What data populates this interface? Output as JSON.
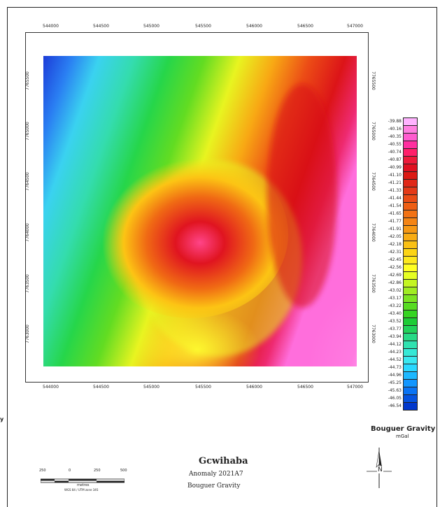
{
  "map": {
    "easting_ticks": [
      "544000",
      "544500",
      "545000",
      "545500",
      "546000",
      "546500",
      "547000"
    ],
    "northing_ticks_left": [
      "7765500",
      "7765000",
      "7764500",
      "7764000",
      "7763500",
      "7763000"
    ],
    "northing_ticks_right": [
      "7765500",
      "7765000",
      "7764500",
      "7764000",
      "7763500",
      "7763000"
    ]
  },
  "legend": {
    "title": "Bouguer Gravity",
    "unit": "mGal",
    "values": [
      "-39.88",
      "-40.16",
      "-40.35",
      "-40.55",
      "-40.74",
      "-40.87",
      "-40.99",
      "-41.10",
      "-41.21",
      "-41.33",
      "-41.44",
      "-41.54",
      "-41.65",
      "-41.77",
      "-41.91",
      "-42.05",
      "-42.18",
      "-42.31",
      "-42.45",
      "-42.56",
      "-42.69",
      "-42.86",
      "-43.02",
      "-43.17",
      "-43.22",
      "-43.40",
      "-43.52",
      "-43.77",
      "-43.94",
      "-44.12",
      "-44.23",
      "-44.52",
      "-44.73",
      "-44.96",
      "-45.25",
      "-45.63",
      "-46.05",
      "-46.54"
    ],
    "colors": [
      "#ffb3ff",
      "#ff7fe0",
      "#ff5ccf",
      "#ff2fa0",
      "#ff1f6a",
      "#ee1a3a",
      "#e01020",
      "#dc1a14",
      "#e02818",
      "#e43a18",
      "#ea4c16",
      "#ee5e14",
      "#f27214",
      "#f48414",
      "#f69814",
      "#f8ac14",
      "#fac014",
      "#fcd414",
      "#fde81c",
      "#ffff22",
      "#e6ff22",
      "#c4f522",
      "#a0ec22",
      "#7ce422",
      "#58dc22",
      "#36d422",
      "#1ecc36",
      "#22d25a",
      "#28da86",
      "#30e2b0",
      "#36e8d6",
      "#3ae8f0",
      "#2ad8ff",
      "#1cb8ff",
      "#1296ff",
      "#0a74f4",
      "#0654e0",
      "#0238cc"
    ]
  },
  "side_text": "y",
  "titles": {
    "line1": "Gcwihaba",
    "line2": "Anomaly 2021A7",
    "line3": "Bouguer Gravity"
  },
  "scalebar": {
    "labels": [
      "250",
      "0",
      "250",
      "500"
    ],
    "unit": "metres",
    "note": "WGS 84 / UTM zone 34S"
  },
  "north": {
    "label": "N"
  }
}
